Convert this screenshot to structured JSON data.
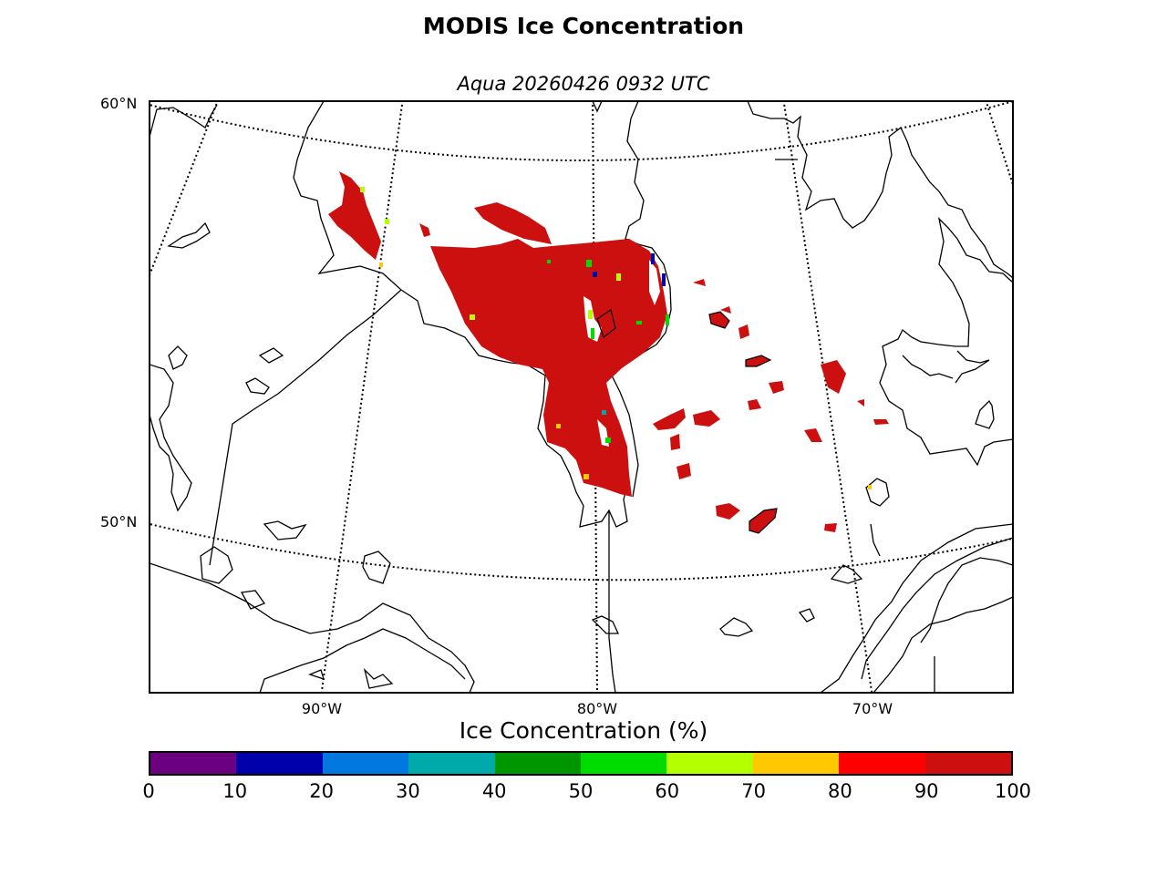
{
  "title": "MODIS Ice Concentration",
  "subtitle": "Aqua 20260426 0932 UTC",
  "map": {
    "lat_labels": [
      "60°N",
      "50°N"
    ],
    "lon_labels": [
      "90°W",
      "80°W",
      "70°W"
    ],
    "land_fill": "#ffffff",
    "coastline_color": "#000000",
    "ice_color_high": "#cc1010"
  },
  "colorbar": {
    "title": "Ice Concentration (%)",
    "ticks": [
      "0",
      "10",
      "20",
      "30",
      "40",
      "50",
      "60",
      "70",
      "80",
      "90",
      "100"
    ],
    "colors": [
      "#6b0080",
      "#0000aa",
      "#0078e0",
      "#00aaaa",
      "#009600",
      "#00dc00",
      "#b4ff00",
      "#ffc800",
      "#ff0000",
      "#cc1010"
    ]
  }
}
